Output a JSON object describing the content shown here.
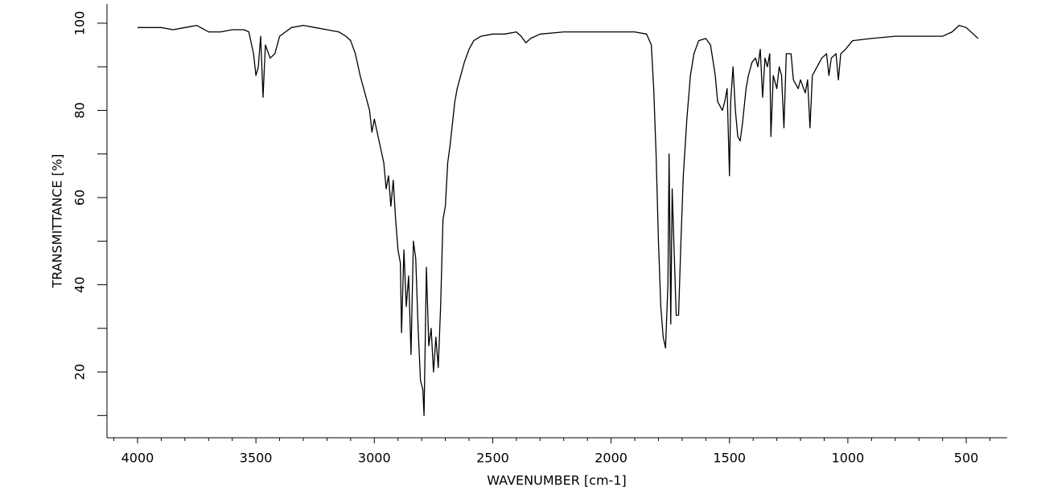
{
  "chart_data": {
    "type": "line",
    "x_label": "WAVENUMBER [cm-1]",
    "y_label": "TRANSMITTANCE [%]",
    "xlim": [
      4129,
      327
    ],
    "ylim": [
      4.9,
      104.4
    ],
    "xticks": [
      4000,
      3500,
      3000,
      2500,
      2000,
      1500,
      1000,
      500
    ],
    "yticks": [
      20,
      40,
      60,
      80,
      100
    ],
    "xminorticks": [
      4100,
      3900,
      3800,
      3700,
      3600,
      3400,
      3300,
      3200,
      3100,
      2900,
      2800,
      2700,
      2600,
      2400,
      2300,
      2200,
      2100,
      1900,
      1800,
      1700,
      1600,
      1400,
      1300,
      1200,
      1100,
      900,
      800,
      700,
      600,
      400
    ],
    "yminorticks": [
      10,
      30,
      50,
      70,
      90
    ],
    "series": [
      {
        "color": "#000000",
        "x": [
          4000,
          3900,
          3850,
          3800,
          3750,
          3700,
          3650,
          3600,
          3550,
          3530,
          3510,
          3500,
          3490,
          3480,
          3470,
          3460,
          3440,
          3420,
          3400,
          3350,
          3300,
          3250,
          3200,
          3150,
          3120,
          3100,
          3080,
          3060,
          3040,
          3020,
          3010,
          3000,
          2980,
          2960,
          2950,
          2940,
          2930,
          2920,
          2910,
          2900,
          2890,
          2885,
          2875,
          2865,
          2855,
          2845,
          2835,
          2825,
          2815,
          2805,
          2795,
          2790,
          2780,
          2770,
          2760,
          2750,
          2740,
          2730,
          2720,
          2710,
          2700,
          2690,
          2680,
          2670,
          2660,
          2650,
          2640,
          2620,
          2600,
          2580,
          2550,
          2500,
          2450,
          2400,
          2380,
          2360,
          2340,
          2300,
          2200,
          2100,
          2000,
          1900,
          1850,
          1830,
          1820,
          1810,
          1800,
          1790,
          1780,
          1770,
          1760,
          1755,
          1748,
          1742,
          1735,
          1725,
          1715,
          1705,
          1695,
          1680,
          1665,
          1650,
          1630,
          1600,
          1580,
          1560,
          1550,
          1530,
          1520,
          1510,
          1500,
          1495,
          1485,
          1475,
          1465,
          1455,
          1445,
          1430,
          1420,
          1405,
          1390,
          1380,
          1370,
          1360,
          1350,
          1340,
          1330,
          1325,
          1315,
          1300,
          1290,
          1280,
          1270,
          1260,
          1240,
          1230,
          1210,
          1200,
          1180,
          1170,
          1160,
          1150,
          1130,
          1110,
          1090,
          1080,
          1070,
          1050,
          1040,
          1030,
          1010,
          980,
          900,
          800,
          700,
          600,
          560,
          530,
          500,
          470,
          450
        ],
        "values": [
          99,
          99,
          98.5,
          99,
          99.5,
          98,
          98,
          98.5,
          98.5,
          98,
          93,
          88,
          90,
          97,
          83,
          95,
          92,
          93,
          97,
          99,
          99.5,
          99,
          98.5,
          98,
          97,
          96,
          93,
          88,
          84,
          80,
          75,
          78,
          73,
          68,
          62,
          65,
          58,
          64,
          55,
          48,
          45,
          29,
          48,
          35,
          42,
          24,
          50,
          46,
          30,
          18,
          16,
          10,
          44,
          26,
          30,
          20,
          28,
          21,
          35,
          55,
          58,
          68,
          72,
          77,
          82,
          85,
          87,
          91,
          94,
          96,
          97,
          97.5,
          97.5,
          98,
          97,
          95.5,
          96.5,
          97.5,
          98,
          98,
          98,
          98,
          97.5,
          95,
          85,
          70,
          50,
          35,
          28,
          25.5,
          40,
          70,
          31,
          62,
          50,
          33,
          33,
          50,
          65,
          78,
          88,
          93,
          96,
          96.5,
          95,
          88,
          82,
          80,
          82,
          85,
          65,
          82,
          90,
          80,
          74,
          73,
          77,
          85,
          88,
          91,
          92,
          90,
          94,
          83,
          92,
          90,
          93,
          74,
          88,
          85,
          90,
          88,
          76,
          93,
          93,
          87,
          85,
          87,
          84,
          87,
          76,
          88,
          90,
          92,
          93,
          88,
          92,
          93,
          87,
          93,
          94,
          96,
          96.5,
          97,
          97,
          97,
          98,
          99.5,
          99,
          97.5,
          96.5
        ]
      }
    ]
  }
}
